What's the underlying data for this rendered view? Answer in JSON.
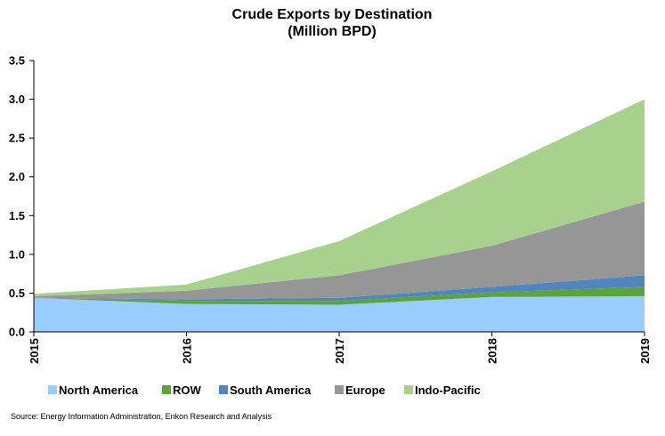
{
  "chart_data": {
    "type": "area",
    "stacked": true,
    "title": "Crude Exports by Destination",
    "subtitle": "(Million BPD)",
    "x": [
      "2015",
      "2016",
      "2017",
      "2018",
      "2019"
    ],
    "ylim": [
      0,
      3.5
    ],
    "yticks": [
      "0.0",
      "0.5",
      "1.0",
      "1.5",
      "2.0",
      "2.5",
      "3.0",
      "3.5"
    ],
    "grid": false,
    "legend_position": "bottom",
    "series": [
      {
        "name": "North America",
        "color": "#99ccff",
        "values": [
          0.44,
          0.36,
          0.35,
          0.45,
          0.46
        ]
      },
      {
        "name": "ROW",
        "color": "#5ca43a",
        "values": [
          0.0,
          0.04,
          0.05,
          0.06,
          0.12
        ]
      },
      {
        "name": "South America",
        "color": "#4f86c0",
        "values": [
          0.0,
          0.02,
          0.04,
          0.07,
          0.15
        ]
      },
      {
        "name": "Europe",
        "color": "#969696",
        "values": [
          0.02,
          0.11,
          0.29,
          0.53,
          0.95
        ]
      },
      {
        "name": "Indo-Pacific",
        "color": "#a9d18e",
        "values": [
          0.03,
          0.08,
          0.44,
          0.96,
          1.32
        ]
      }
    ]
  },
  "footer": {
    "source": "Source:  Energy Information Administration, Enkon Research and Analysis"
  }
}
